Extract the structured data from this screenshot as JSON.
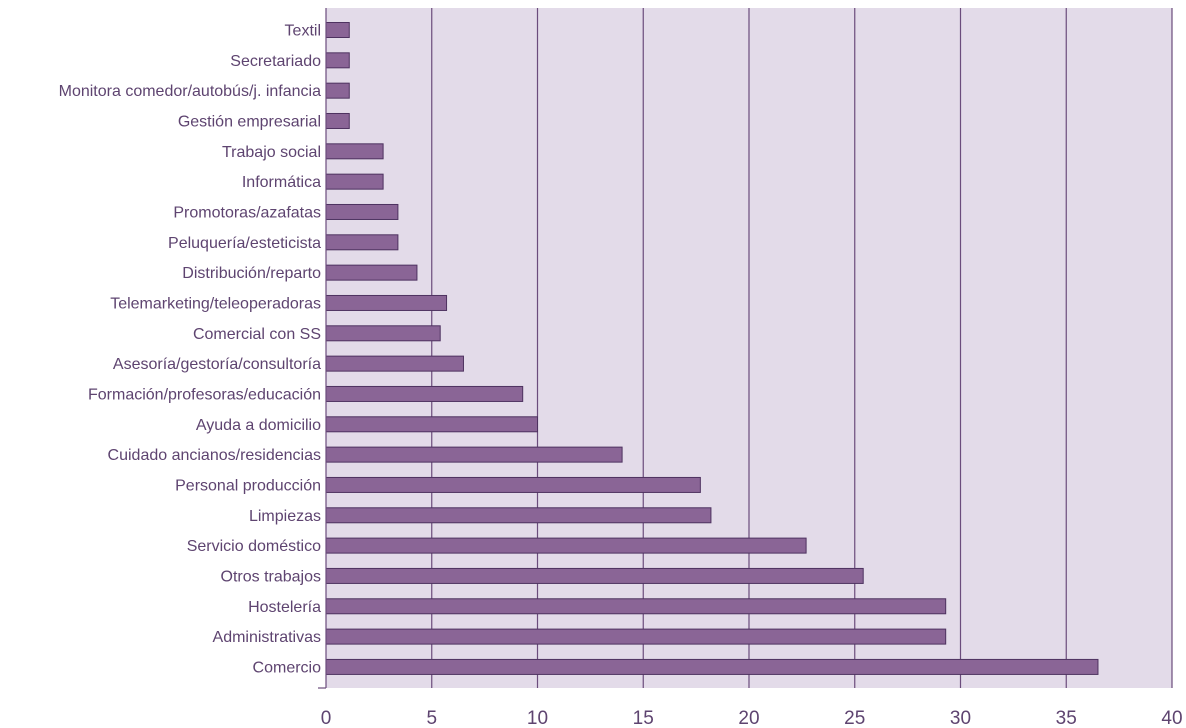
{
  "chart_data": {
    "type": "bar",
    "orientation": "horizontal",
    "categories": [
      "Textil",
      "Secretariado",
      "Monitora comedor/autobús/j. infancia",
      "Gestión empresarial",
      "Trabajo social",
      "Informática",
      "Promotoras/azafatas",
      "Peluquería/esteticista",
      "Distribución/reparto",
      "Telemarketing/teleoperadoras",
      "Comercial con SS",
      "Asesoría/gestoría/consultoría",
      "Formación/profesoras/educación",
      "Ayuda a domicilio",
      "Cuidado ancianos/residencias",
      "Personal producción",
      "Limpiezas",
      "Servicio doméstico",
      "Otros trabajos",
      "Hostelería",
      "Administrativas",
      "Comercio"
    ],
    "values": [
      1.1,
      1.1,
      1.1,
      1.1,
      2.7,
      2.7,
      3.4,
      3.4,
      4.3,
      5.7,
      5.4,
      6.5,
      9.3,
      10.0,
      14.0,
      17.7,
      18.2,
      22.7,
      25.4,
      29.3,
      29.3,
      36.5
    ],
    "xlim": [
      0,
      40
    ],
    "xticks": [
      0,
      5,
      10,
      15,
      20,
      25,
      30,
      35,
      40
    ],
    "title": "",
    "xlabel": "",
    "ylabel": "",
    "grid": "vertical",
    "legend": "none",
    "colors": {
      "plot_background": "#e3dbe9",
      "bar_fill": "#8a6596",
      "bar_stroke": "#4e3260",
      "grid_line": "#6b4c7c",
      "text": "#5e4470"
    }
  }
}
